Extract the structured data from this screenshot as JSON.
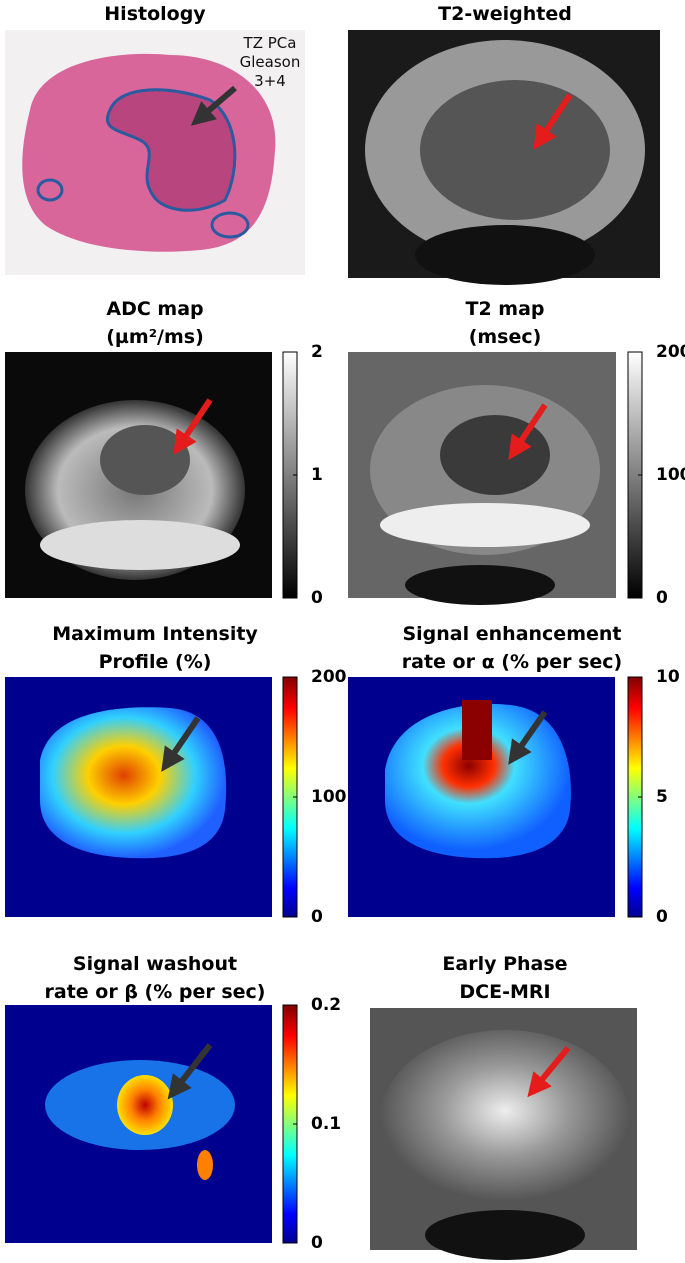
{
  "panels": [
    {
      "title": [
        "Histology"
      ],
      "annotation": [
        "TZ PCa",
        "Gleason",
        "3+4"
      ]
    },
    {
      "title": [
        "T2-weighted"
      ]
    },
    {
      "title": [
        "ADC map",
        "(µm²/ms)"
      ],
      "colormap": "gray",
      "colorbar": {
        "lim": [
          0,
          2
        ],
        "ticks": [
          0,
          1,
          2
        ]
      }
    },
    {
      "title": [
        "T2 map",
        "(msec)"
      ],
      "colormap": "gray",
      "colorbar": {
        "lim": [
          0,
          200
        ],
        "ticks": [
          0,
          100,
          200
        ]
      }
    },
    {
      "title": [
        "Maximum Intensity",
        "Profile (%)"
      ],
      "colormap": "jet",
      "colorbar": {
        "lim": [
          0,
          200
        ],
        "ticks": [
          0,
          100,
          200
        ]
      }
    },
    {
      "title": [
        "Signal enhancement",
        "rate or α (% per sec)"
      ],
      "colormap": "jet",
      "colorbar": {
        "lim": [
          0,
          10
        ],
        "ticks": [
          0,
          5,
          10
        ]
      }
    },
    {
      "title": [
        "Signal washout",
        "rate or β (% per sec)"
      ],
      "colormap": "jet",
      "colorbar": {
        "lim": [
          0,
          0.2
        ],
        "ticks": [
          0,
          0.1,
          0.2
        ]
      }
    },
    {
      "title": [
        "Early Phase",
        "DCE-MRI"
      ]
    }
  ]
}
